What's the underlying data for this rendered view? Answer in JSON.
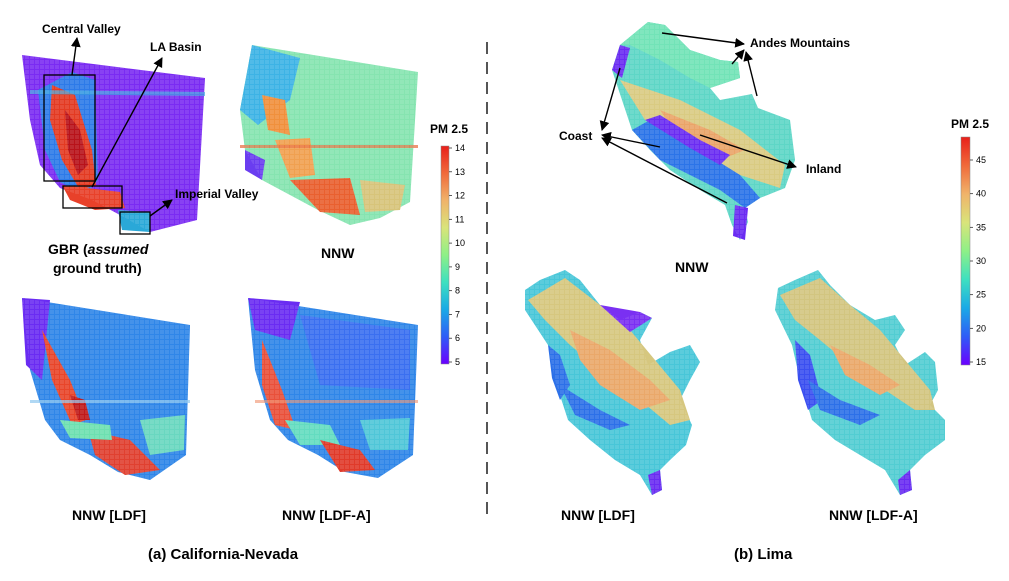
{
  "colormap_stops": [
    "#6a00ff",
    "#2f5cf7",
    "#1aa9e6",
    "#3ee0c0",
    "#8ef087",
    "#d9e47a",
    "#f0b36a",
    "#f06a3a",
    "#e8201a"
  ],
  "california": {
    "caption": "(a) California-Nevada",
    "colorbar": {
      "title": "PM 2.5",
      "ticks": [
        "5",
        "6",
        "7",
        "8",
        "9",
        "10",
        "11",
        "12",
        "13",
        "14"
      ]
    },
    "panels": {
      "gbr": {
        "label_part1": "GBR (",
        "label_italic": "assumed",
        "label_line2": "ground truth)"
      },
      "nnw": {
        "label": "NNW"
      },
      "nnw_ldf": {
        "label": "NNW [LDF]"
      },
      "nnw_ldfa": {
        "label": "NNW [LDF-A]"
      }
    },
    "annotations": [
      "Central Valley",
      "LA Basin",
      "Imperial Valley"
    ]
  },
  "lima": {
    "caption": "(b) Lima",
    "colorbar": {
      "title": "PM 2.5",
      "ticks": [
        "15",
        "20",
        "25",
        "30",
        "35",
        "40",
        "45"
      ]
    },
    "panels": {
      "nnw": {
        "label": "NNW"
      },
      "nnw_ldf": {
        "label": "NNW [LDF]"
      },
      "nnw_ldfa": {
        "label": "NNW [LDF-A]"
      }
    },
    "annotations": [
      "Andes Mountains",
      "Coast",
      "Inland"
    ]
  }
}
